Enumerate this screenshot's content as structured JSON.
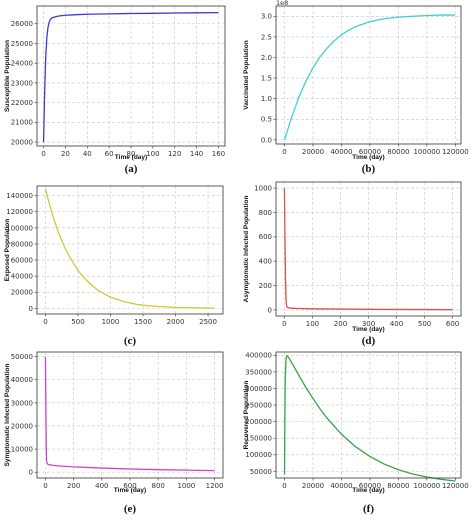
{
  "chart_data": [
    {
      "type": "line",
      "panel_label": "(a)",
      "xlabel": "Time (day)",
      "ylabel": "Susceptible Population",
      "xlim": [
        -6,
        166
      ],
      "ylim": [
        19800,
        26900
      ],
      "xticks": [
        0,
        20,
        40,
        60,
        80,
        100,
        120,
        140,
        160
      ],
      "yticks": [
        20000,
        21000,
        22000,
        23000,
        24000,
        25000,
        26000
      ],
      "ytick_labels": [
        "20000",
        "21000",
        "22000",
        "23000",
        "24000",
        "25000",
        "26000"
      ],
      "y_offset_text": "",
      "grid": true,
      "color": "#3b3bd4",
      "series": [
        {
          "x": [
            0,
            1,
            2,
            3,
            4,
            5,
            6,
            7,
            8,
            10,
            12,
            15,
            20,
            30,
            40,
            60,
            80,
            100,
            120,
            140,
            160
          ],
          "y": [
            20000,
            22500,
            24300,
            25300,
            25800,
            26050,
            26200,
            26260,
            26300,
            26340,
            26370,
            26400,
            26430,
            26460,
            26480,
            26500,
            26520,
            26530,
            26545,
            26555,
            26565
          ]
        }
      ]
    },
    {
      "type": "line",
      "panel_label": "(b)",
      "xlabel": "Time (day)",
      "ylabel": "Vaccinated Population",
      "xlim": [
        -6000,
        124000
      ],
      "ylim": [
        -0.1,
        3.25
      ],
      "xticks": [
        0,
        20000,
        40000,
        60000,
        80000,
        100000,
        120000
      ],
      "yticks": [
        0.0,
        0.5,
        1.0,
        1.5,
        2.0,
        2.5,
        3.0
      ],
      "ytick_labels": [
        "0.0",
        "0.5",
        "1.0",
        "1.5",
        "2.0",
        "2.5",
        "3.0"
      ],
      "y_offset_text": "1e8",
      "grid": true,
      "color": "#45cfcf",
      "series": [
        {
          "x": [
            0,
            5000,
            10000,
            15000,
            20000,
            25000,
            30000,
            35000,
            40000,
            45000,
            50000,
            60000,
            70000,
            80000,
            90000,
            100000,
            110000,
            120000
          ],
          "y": [
            0.0,
            0.55,
            1.03,
            1.42,
            1.75,
            2.02,
            2.23,
            2.41,
            2.55,
            2.66,
            2.75,
            2.87,
            2.94,
            2.98,
            3.0,
            3.02,
            3.03,
            3.03
          ]
        }
      ]
    },
    {
      "type": "line",
      "panel_label": "(c)",
      "xlabel": "",
      "ylabel": "Exposed Population",
      "xlim": [
        -130,
        2730
      ],
      "ylim": [
        -7000,
        152000
      ],
      "xticks": [
        0,
        500,
        1000,
        1500,
        2000,
        2500
      ],
      "yticks": [
        0,
        20000,
        40000,
        60000,
        80000,
        100000,
        120000,
        140000
      ],
      "ytick_labels": [
        "0",
        "20000",
        "40000",
        "60000",
        "80000",
        "100000",
        "120000",
        "140000"
      ],
      "y_offset_text": "",
      "grid": true,
      "color": "#cfc93a",
      "series": [
        {
          "x": [
            0,
            100,
            200,
            300,
            400,
            500,
            600,
            700,
            800,
            900,
            1000,
            1200,
            1400,
            1600,
            1800,
            2000,
            2200,
            2400,
            2600
          ],
          "y": [
            148000,
            118000,
            94000,
            75000,
            60000,
            47000,
            37500,
            29500,
            23000,
            18000,
            14000,
            8500,
            5000,
            3000,
            2000,
            1200,
            800,
            500,
            300
          ]
        }
      ]
    },
    {
      "type": "line",
      "panel_label": "(d)",
      "xlabel": "Time (day)",
      "ylabel": "Asymptomatic Infected Population",
      "xlim": [
        -30,
        630
      ],
      "ylim": [
        -50,
        1050
      ],
      "xticks": [
        0,
        100,
        200,
        300,
        400,
        500,
        600
      ],
      "yticks": [
        0,
        200,
        400,
        600,
        800,
        1000
      ],
      "ytick_labels": [
        "0",
        "200",
        "400",
        "600",
        "800",
        "1000"
      ],
      "y_offset_text": "",
      "grid": true,
      "color": "#d9534f",
      "series": [
        {
          "x": [
            0,
            2,
            4,
            6,
            8,
            10,
            15,
            20,
            40,
            60,
            100,
            200,
            300,
            400,
            500,
            600
          ],
          "y": [
            1000,
            600,
            250,
            80,
            35,
            22,
            18,
            15,
            12,
            11,
            9,
            7,
            5,
            4,
            3,
            2
          ]
        }
      ]
    },
    {
      "type": "line",
      "panel_label": "(e)",
      "xlabel": "Time (day)",
      "ylabel": "Symptomatic Infected Population",
      "xlim": [
        -60,
        1260
      ],
      "ylim": [
        -2500,
        52000
      ],
      "xticks": [
        0,
        200,
        400,
        600,
        800,
        1000,
        1200
      ],
      "yticks": [
        0,
        10000,
        20000,
        30000,
        40000,
        50000
      ],
      "ytick_labels": [
        "0",
        "10000",
        "20000",
        "30000",
        "40000",
        "50000"
      ],
      "y_offset_text": "",
      "grid": true,
      "color": "#cc44cc",
      "series": [
        {
          "x": [
            0,
            2,
            4,
            6,
            8,
            10,
            15,
            20,
            30,
            50,
            100,
            200,
            400,
            600,
            800,
            1000,
            1200
          ],
          "y": [
            50000,
            35000,
            20000,
            10000,
            5500,
            4200,
            3600,
            3400,
            3200,
            3000,
            2700,
            2300,
            1800,
            1400,
            1100,
            900,
            700
          ]
        }
      ]
    },
    {
      "type": "line",
      "panel_label": "(f)",
      "xlabel": "Time (day)",
      "ylabel": "Recovered Population",
      "xlim": [
        -6000,
        124000
      ],
      "ylim": [
        30000,
        410000
      ],
      "xticks": [
        0,
        20000,
        40000,
        60000,
        80000,
        100000,
        120000
      ],
      "yticks": [
        50000,
        100000,
        150000,
        200000,
        250000,
        300000,
        350000,
        400000
      ],
      "ytick_labels": [
        "50000",
        "100000",
        "150000",
        "200000",
        "250000",
        "300000",
        "350000",
        "400000"
      ],
      "y_offset_text": "",
      "grid": true,
      "color": "#3aa346",
      "series": [
        {
          "x": [
            0,
            200,
            500,
            1000,
            1500,
            2000,
            2500,
            3000,
            5000,
            10000,
            15000,
            20000,
            25000,
            30000,
            40000,
            50000,
            60000,
            70000,
            80000,
            90000,
            100000,
            110000,
            120000
          ],
          "y": [
            40000,
            200000,
            330000,
            385000,
            398000,
            398000,
            396000,
            392000,
            378000,
            340000,
            303000,
            270000,
            238000,
            210000,
            162000,
            124000,
            95000,
            72000,
            55000,
            42000,
            33000,
            26000,
            21000
          ]
        }
      ]
    }
  ]
}
